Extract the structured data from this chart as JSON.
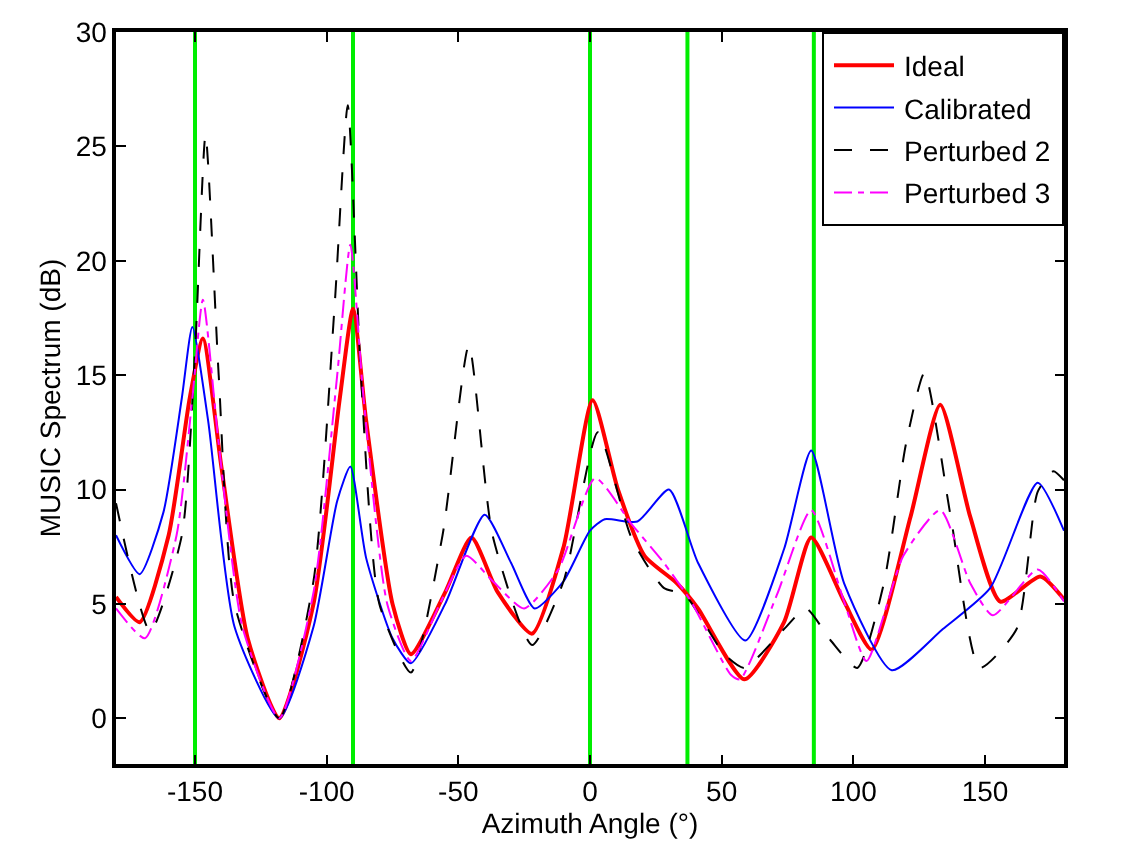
{
  "chart_data": {
    "type": "line",
    "xlabel": "Azimuth Angle (°)",
    "ylabel": "MUSIC Spectrum (dB)",
    "xlim": [
      -180,
      180
    ],
    "xticks": [
      -150,
      -100,
      -50,
      0,
      50,
      100,
      150
    ],
    "ylim": [
      -2,
      30
    ],
    "yticks": [
      0,
      5,
      10,
      15,
      20,
      25,
      30
    ],
    "grid": false,
    "legend": "top right",
    "marker": "none",
    "series": [
      {
        "name": "Ideal",
        "color": "#ff0000",
        "line_style": "solid",
        "x": [
          -180,
          -171,
          -160,
          -152,
          -147,
          -140,
          -130,
          -118,
          -105,
          -95,
          -90,
          -85,
          -75,
          -68,
          -55,
          -45,
          -35,
          -22,
          -10,
          1,
          10.6,
          20.7,
          33,
          41,
          58.6,
          73.7,
          84,
          96.5,
          107,
          121.7,
          133,
          144.4,
          155.8,
          171,
          180
        ],
        "values": [
          5.3,
          4.2,
          8,
          14,
          16.6,
          11,
          3.5,
          0,
          5,
          14,
          17.9,
          13,
          5,
          2.8,
          5.5,
          7.9,
          5.5,
          3.7,
          7.5,
          13.9,
          10,
          7.1,
          5.9,
          4.8,
          1.7,
          4.2,
          7.9,
          5.1,
          3.0,
          8.8,
          13.7,
          8.8,
          5.1,
          6.2,
          5.2
        ]
      },
      {
        "name": "Calibrated",
        "color": "#0000ff",
        "line_style": "solid",
        "x": [
          -180,
          -171,
          -162,
          -155,
          -151,
          -145,
          -135,
          -118,
          -105,
          -96,
          -91,
          -85,
          -75,
          -68,
          -55,
          -40,
          -30,
          -21,
          -10,
          0,
          5.6,
          18,
          30,
          41,
          59,
          73.7,
          84,
          96.5,
          114.6,
          134,
          152,
          170,
          180
        ],
        "values": [
          8.0,
          6.3,
          9,
          14,
          17.1,
          13,
          4,
          0,
          4,
          9.5,
          11,
          7,
          3.5,
          2.4,
          5,
          8.9,
          6.8,
          4.8,
          6,
          8.2,
          8.7,
          8.6,
          10,
          6.8,
          3.4,
          7.4,
          11.7,
          5.9,
          2.1,
          3.9,
          5.7,
          10.3,
          8.2
        ]
      },
      {
        "name": "Perturbed 2",
        "color": "#000000",
        "line_style": "dashed",
        "x": [
          -180,
          -167,
          -155,
          -150,
          -146,
          -141,
          -135,
          -118,
          -105,
          -97,
          -92,
          -87,
          -80,
          -68,
          -56,
          -46,
          -37,
          -22,
          -10,
          3,
          15.7,
          28,
          36,
          51,
          58.6,
          73.7,
          82,
          91.4,
          101.5,
          111.6,
          120,
          127,
          137,
          148,
          162,
          170,
          176,
          180
        ],
        "values": [
          9.4,
          3.8,
          8,
          16,
          25.5,
          15,
          5,
          0,
          6,
          18,
          26.8,
          15,
          5,
          2.0,
          8,
          16.3,
          8,
          3.2,
          6,
          12.5,
          7.9,
          5.7,
          5.4,
          2.8,
          2.2,
          3.9,
          4.8,
          3.4,
          2.2,
          5.9,
          12,
          15.1,
          8.8,
          2.2,
          3.9,
          9.9,
          10.8,
          10.4
        ]
      },
      {
        "name": "Perturbed 3",
        "color": "#ff00ff",
        "line_style": "dashdot",
        "x": [
          -180,
          -169,
          -157,
          -151,
          -147,
          -141,
          -132,
          -118,
          -105,
          -96,
          -91,
          -86,
          -77,
          -68,
          -57,
          -47,
          -37,
          -25,
          -12,
          2,
          15.7,
          28,
          38.4,
          53.5,
          57,
          71,
          84,
          96.5,
          105,
          119,
          133,
          144.4,
          153,
          170,
          180
        ],
        "values": [
          4.8,
          3.5,
          8,
          14,
          18.3,
          12,
          4,
          0,
          5.5,
          15,
          20.7,
          14,
          5,
          2.5,
          5,
          7.1,
          6,
          4.8,
          6.5,
          10.5,
          8.5,
          6.8,
          5.1,
          1.9,
          1.7,
          5.4,
          9.1,
          5.1,
          2.5,
          7.1,
          9.1,
          5.9,
          4.5,
          6.5,
          5.1
        ]
      }
    ],
    "ref_lines": [
      {
        "axis": "x",
        "value": -150,
        "color": "#00ee00"
      },
      {
        "axis": "x",
        "value": -90,
        "color": "#00ee00"
      },
      {
        "axis": "x",
        "value": 0,
        "color": "#00ee00"
      },
      {
        "axis": "x",
        "value": 37,
        "color": "#00ee00"
      },
      {
        "axis": "x",
        "value": 85,
        "color": "#00ee00"
      }
    ]
  }
}
